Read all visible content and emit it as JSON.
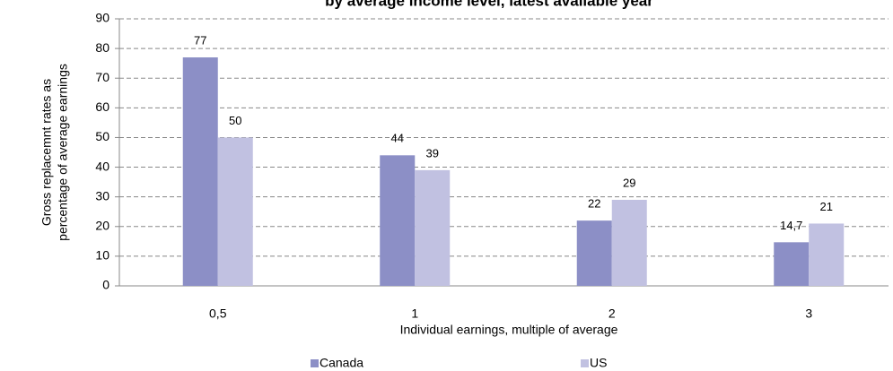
{
  "chart_data": {
    "type": "bar",
    "title": "by average income level, latest available year",
    "x_label": "Individual earnings, multiple of average",
    "y_label": [
      "Gross replacemnt rates as",
      "percentage of average earnings"
    ],
    "categories": [
      "0,5",
      "1",
      "2",
      "3"
    ],
    "series": [
      {
        "name": "Canada",
        "color": "#8c8fc6",
        "values": [
          77,
          44,
          22,
          14.7
        ],
        "value_labels": [
          "77",
          "44",
          "22",
          "14,7"
        ]
      },
      {
        "name": "US",
        "color": "#c1c1e1",
        "values": [
          50,
          39,
          29,
          21
        ],
        "value_labels": [
          "50",
          "39",
          "29",
          "21"
        ]
      }
    ],
    "ylim": [
      0,
      90
    ],
    "yticks": [
      0,
      10,
      20,
      30,
      40,
      50,
      60,
      70,
      80,
      90
    ],
    "grid": true
  }
}
